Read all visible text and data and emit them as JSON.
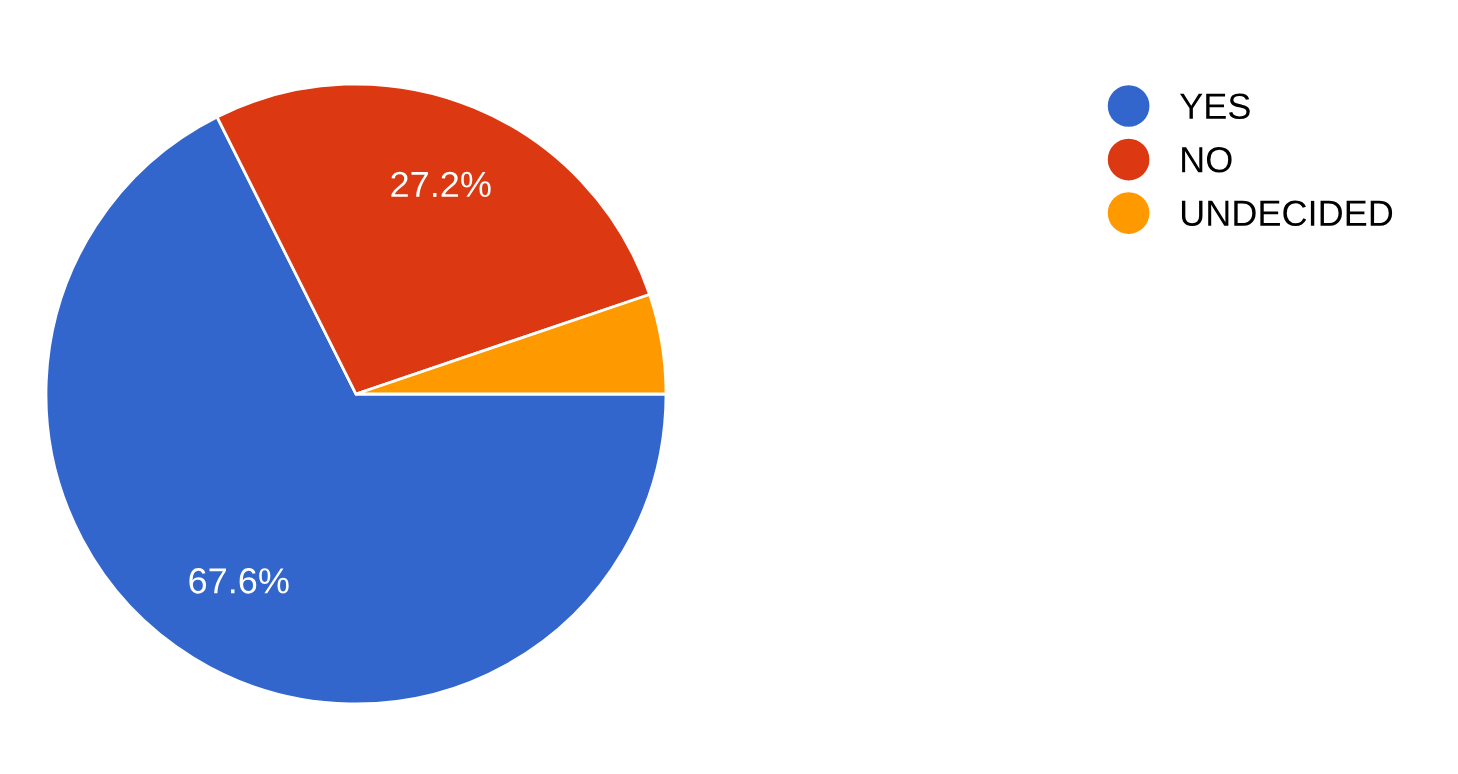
{
  "chart_data": {
    "type": "pie",
    "categories": [
      "YES",
      "NO",
      "UNDECIDED"
    ],
    "values": [
      67.6,
      27.2,
      5.2
    ],
    "colors": [
      "#3366cc",
      "#dc3912",
      "#ff9900"
    ],
    "value_labels": [
      "67.6%",
      "27.2%",
      null
    ],
    "legend": "right"
  }
}
